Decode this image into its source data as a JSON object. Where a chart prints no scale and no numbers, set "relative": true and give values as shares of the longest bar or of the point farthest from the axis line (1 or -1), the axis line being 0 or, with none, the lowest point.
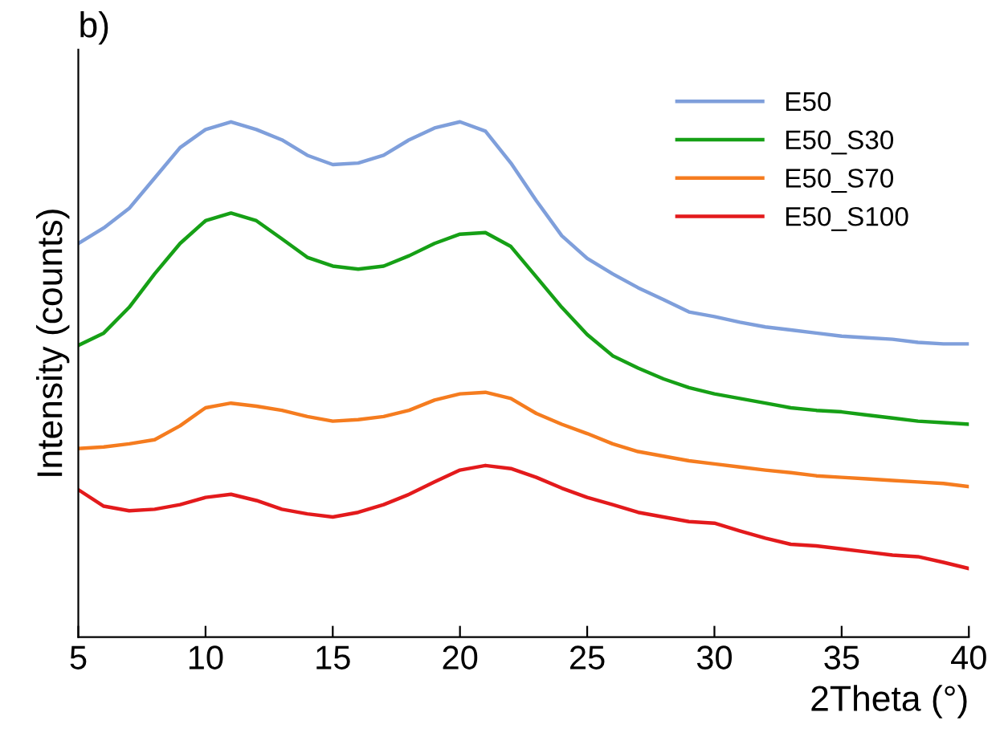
{
  "chart_data": {
    "type": "line",
    "relative": true,
    "xlabel": "2Theta (°)",
    "ylabel": "Intensity (counts)",
    "annotations": [
      "b)"
    ],
    "x": [
      5,
      6,
      7,
      8,
      9,
      10,
      11,
      12,
      13,
      14,
      15,
      16,
      17,
      18,
      19,
      20,
      21,
      22,
      23,
      24,
      25,
      26,
      27,
      28,
      29,
      30,
      31,
      32,
      33,
      34,
      35,
      36,
      37,
      38,
      39,
      40
    ],
    "xlim": [
      5,
      40
    ],
    "xticks": [
      5,
      10,
      15,
      20,
      25,
      30,
      35,
      40
    ],
    "legend": "top right",
    "grid": false,
    "series": [
      {
        "name": "E50",
        "color": "#7f9fdb",
        "values": [
          0.764,
          0.794,
          0.832,
          0.891,
          0.95,
          0.985,
          1.0,
          0.985,
          0.965,
          0.935,
          0.917,
          0.92,
          0.935,
          0.965,
          0.988,
          1.0,
          0.982,
          0.92,
          0.847,
          0.779,
          0.735,
          0.705,
          0.678,
          0.655,
          0.631,
          0.622,
          0.611,
          0.602,
          0.596,
          0.59,
          0.584,
          0.581,
          0.578,
          0.572,
          0.569,
          0.569
        ]
      },
      {
        "name": "E50_S30",
        "color": "#16a016",
        "values": [
          0.566,
          0.59,
          0.64,
          0.705,
          0.764,
          0.808,
          0.823,
          0.808,
          0.773,
          0.737,
          0.72,
          0.714,
          0.72,
          0.74,
          0.764,
          0.782,
          0.785,
          0.758,
          0.699,
          0.64,
          0.587,
          0.546,
          0.522,
          0.501,
          0.484,
          0.472,
          0.463,
          0.454,
          0.445,
          0.44,
          0.437,
          0.431,
          0.425,
          0.419,
          0.416,
          0.413
        ]
      },
      {
        "name": "E50_S70",
        "color": "#f57c1f",
        "values": [
          0.366,
          0.369,
          0.375,
          0.383,
          0.41,
          0.445,
          0.454,
          0.448,
          0.44,
          0.428,
          0.419,
          0.422,
          0.428,
          0.44,
          0.46,
          0.472,
          0.475,
          0.463,
          0.434,
          0.413,
          0.395,
          0.375,
          0.36,
          0.351,
          0.342,
          0.336,
          0.33,
          0.324,
          0.319,
          0.313,
          0.31,
          0.307,
          0.304,
          0.301,
          0.298,
          0.292
        ]
      },
      {
        "name": "E50_S100",
        "color": "#e31a1c",
        "values": [
          0.286,
          0.254,
          0.245,
          0.248,
          0.257,
          0.271,
          0.277,
          0.265,
          0.248,
          0.239,
          0.233,
          0.242,
          0.257,
          0.277,
          0.301,
          0.324,
          0.333,
          0.327,
          0.31,
          0.289,
          0.271,
          0.257,
          0.242,
          0.233,
          0.224,
          0.221,
          0.206,
          0.192,
          0.18,
          0.177,
          0.171,
          0.165,
          0.159,
          0.156,
          0.145,
          0.133
        ]
      }
    ]
  }
}
